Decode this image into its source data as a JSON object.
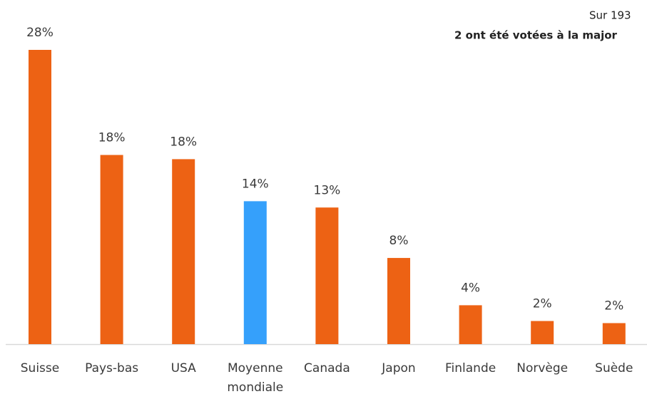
{
  "chart_data": {
    "type": "bar",
    "annotations": [
      "Sur 193",
      "2 ont été votées à la major"
    ],
    "categories": [
      "Suisse",
      "Pays-bas",
      "USA",
      "Moyenne mondiale",
      "Canada",
      "Japon",
      "Finlande",
      "Norvège",
      "Suède"
    ],
    "values": [
      28,
      18,
      17.6,
      13.6,
      13,
      8.2,
      3.7,
      2.2,
      2
    ],
    "value_labels": [
      "28%",
      "18%",
      "18%",
      "14%",
      "13%",
      "8%",
      "4%",
      "2%",
      "2%"
    ],
    "colors": [
      "#ed6214",
      "#ed6214",
      "#ed6214",
      "#35a0fb",
      "#ed6214",
      "#ed6214",
      "#ed6214",
      "#ed6214",
      "#ed6214"
    ],
    "ylim": [
      0,
      28
    ]
  }
}
